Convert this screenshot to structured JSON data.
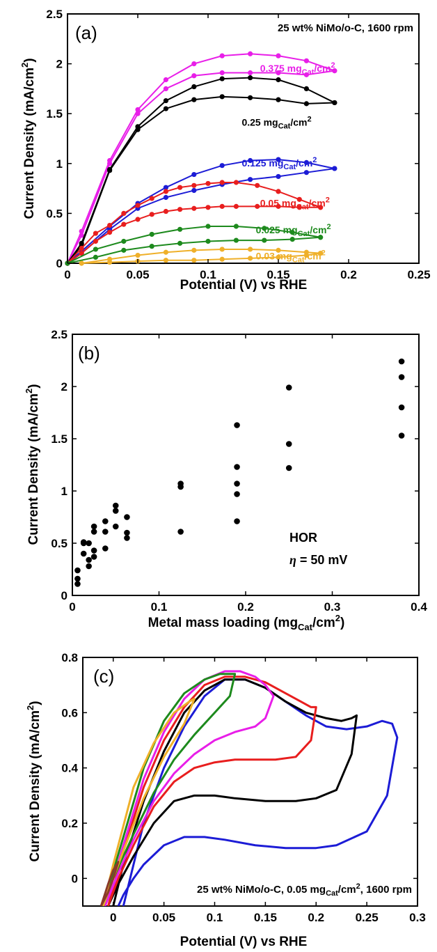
{
  "colors": {
    "magenta": "#e81ee8",
    "black": "#000000",
    "blue": "#1c1cd6",
    "red": "#e81e1e",
    "green": "#1d8a1d",
    "orange": "#efb02a"
  },
  "chart_data": [
    {
      "type": "line",
      "panel": "(a)",
      "annotation": "25 wt% NiMo/o-C, 1600 rpm",
      "xlabel": "Potential (V) vs RHE",
      "ylabel": "Current Density (mA/cm2)",
      "xlim": [
        0,
        0.25
      ],
      "ylim": [
        0,
        2.5
      ],
      "xticks": [
        "0",
        "0.05",
        "0.1",
        "0.15",
        "0.2",
        "0.25"
      ],
      "yticks": [
        "0",
        "0.5",
        "1",
        "1.5",
        "2",
        "2.5"
      ],
      "x": [
        0,
        0.01,
        0.03,
        0.05,
        0.07,
        0.09,
        0.11,
        0.13,
        0.15,
        0.17,
        0.19
      ],
      "series": [
        {
          "name": "0.375 mgCat/cm2",
          "label_main": "0.375 mg",
          "label_sub": "Cat",
          "label_tail": "/cm",
          "label_sup": "2",
          "color": "magenta",
          "forward": [
            0,
            0.32,
            1.03,
            1.54,
            1.84,
            2.0,
            2.08,
            2.1,
            2.08,
            2.03,
            1.93
          ],
          "backward": [
            0,
            0.28,
            1.0,
            1.5,
            1.75,
            1.88,
            1.91,
            1.91,
            1.91,
            1.89,
            1.93
          ]
        },
        {
          "name": "0.25 mgCat/cm2",
          "label_main": "0.25 mg",
          "label_sub": "Cat",
          "label_tail": "/cm",
          "label_sup": "2",
          "color": "black",
          "forward": [
            0,
            0.2,
            0.94,
            1.37,
            1.63,
            1.77,
            1.85,
            1.86,
            1.84,
            1.75,
            1.61
          ],
          "backward": [
            0,
            0.18,
            0.93,
            1.34,
            1.55,
            1.64,
            1.67,
            1.66,
            1.64,
            1.6,
            1.61
          ]
        },
        {
          "name": "0.125 mgCat/cm2",
          "label_main": "0.125 mg",
          "label_sub": "Cat",
          "label_tail": "/cm",
          "label_sup": "2",
          "color": "blue",
          "forward": [
            0,
            0.12,
            0.37,
            0.6,
            0.76,
            0.89,
            0.98,
            1.03,
            1.04,
            1.01,
            0.95
          ],
          "backward": [
            0,
            0.1,
            0.34,
            0.55,
            0.66,
            0.73,
            0.79,
            0.84,
            0.87,
            0.91,
            0.95
          ]
        },
        {
          "name": "0.05 mgCat/cm2",
          "label_main": "0.05 mg",
          "label_sub": "Cat",
          "label_tail": "/cm",
          "label_sup": "2",
          "color": "red",
          "x": [
            0,
            0.01,
            0.02,
            0.03,
            0.04,
            0.05,
            0.06,
            0.07,
            0.08,
            0.09,
            0.1,
            0.11,
            0.12,
            0.135,
            0.15,
            0.165,
            0.18
          ],
          "forward": [
            0,
            0.15,
            0.3,
            0.38,
            0.5,
            0.58,
            0.65,
            0.72,
            0.76,
            0.78,
            0.8,
            0.81,
            0.81,
            0.78,
            0.72,
            0.64,
            0.56
          ],
          "backward": [
            0,
            0.1,
            0.22,
            0.31,
            0.39,
            0.44,
            0.49,
            0.52,
            0.54,
            0.55,
            0.56,
            0.57,
            0.57,
            0.57,
            0.57,
            0.56,
            0.56
          ]
        },
        {
          "name": "0.025 mgCat/cm2",
          "label_main": "0.025 mg",
          "label_sub": "Cat",
          "label_tail": "/cm",
          "label_sup": "2",
          "color": "green",
          "x": [
            0,
            0.02,
            0.04,
            0.06,
            0.08,
            0.1,
            0.12,
            0.14,
            0.16,
            0.18
          ],
          "forward": [
            0,
            0.14,
            0.22,
            0.29,
            0.34,
            0.37,
            0.37,
            0.35,
            0.31,
            0.26
          ],
          "backward": [
            0,
            0.06,
            0.13,
            0.17,
            0.2,
            0.22,
            0.23,
            0.23,
            0.24,
            0.26
          ]
        },
        {
          "name": "0.03 mgCat/cm2",
          "label_main": "0.03 mg",
          "label_sub": "Cat",
          "label_tail": "/cm",
          "label_sup": "2",
          "color": "orange",
          "x": [
            0.01,
            0.03,
            0.05,
            0.07,
            0.09,
            0.11,
            0.13,
            0.15,
            0.17,
            0.18
          ],
          "forward": [
            0,
            0.04,
            0.08,
            0.11,
            0.13,
            0.14,
            0.14,
            0.13,
            0.11,
            0.1
          ],
          "backward": [
            0,
            0.01,
            0.02,
            0.03,
            0.03,
            0.04,
            0.05,
            0.06,
            0.08,
            0.1
          ]
        }
      ]
    },
    {
      "type": "scatter",
      "panel": "(b)",
      "annotation_line1": "HOR",
      "annotation_eta": "η",
      "annotation_line2_rest": " = 50 mV",
      "xlabel_main": "Metal mass loading (mg",
      "xlabel_sub": "Cat",
      "xlabel_tail": "/cm",
      "xlabel_sup": "2",
      "xlabel_close": ")",
      "ylabel": "Current Density (mA/cm2)",
      "xlim": [
        0,
        0.4
      ],
      "ylim": [
        0,
        2.5
      ],
      "xticks": [
        "0",
        "0.1",
        "0.2",
        "0.3",
        "0.4"
      ],
      "yticks": [
        "0",
        "0.5",
        "1",
        "1.5",
        "2",
        "2.5"
      ],
      "color": "black",
      "points": [
        [
          0.006,
          0.11
        ],
        [
          0.006,
          0.16
        ],
        [
          0.006,
          0.24
        ],
        [
          0.013,
          0.4
        ],
        [
          0.013,
          0.5
        ],
        [
          0.013,
          0.51
        ],
        [
          0.019,
          0.28
        ],
        [
          0.019,
          0.34
        ],
        [
          0.019,
          0.5
        ],
        [
          0.025,
          0.37
        ],
        [
          0.025,
          0.43
        ],
        [
          0.025,
          0.61
        ],
        [
          0.025,
          0.66
        ],
        [
          0.038,
          0.45
        ],
        [
          0.038,
          0.61
        ],
        [
          0.038,
          0.71
        ],
        [
          0.05,
          0.66
        ],
        [
          0.05,
          0.81
        ],
        [
          0.05,
          0.86
        ],
        [
          0.063,
          0.55
        ],
        [
          0.063,
          0.6
        ],
        [
          0.063,
          0.75
        ],
        [
          0.125,
          0.61
        ],
        [
          0.125,
          1.04
        ],
        [
          0.125,
          1.07
        ],
        [
          0.19,
          0.71
        ],
        [
          0.19,
          0.97
        ],
        [
          0.19,
          1.07
        ],
        [
          0.19,
          1.23
        ],
        [
          0.19,
          1.63
        ],
        [
          0.25,
          1.22
        ],
        [
          0.25,
          1.45
        ],
        [
          0.25,
          1.99
        ],
        [
          0.38,
          1.53
        ],
        [
          0.38,
          1.8
        ],
        [
          0.38,
          2.09
        ],
        [
          0.38,
          2.24
        ]
      ]
    },
    {
      "type": "line",
      "panel": "(c)",
      "annotation_main": "25 wt% NiMo/o-C, 0.05 mg",
      "annotation_sub": "Cat",
      "annotation_tail": "/cm",
      "annotation_sup": "2",
      "annotation_end": ", 1600 rpm",
      "xlabel": "Potential (V) vs RHE",
      "ylabel": "Current Density (mA/cm2)",
      "xlim": [
        -0.03,
        0.3
      ],
      "ylim": [
        -0.1,
        0.8
      ],
      "xticks": [
        "0",
        "0.05",
        "0.1",
        "0.15",
        "0.2",
        "0.25",
        "0.3"
      ],
      "yticks": [
        "0",
        "0.2",
        "0.4",
        "0.6",
        "0.8"
      ],
      "series": [
        {
          "color": "blue",
          "forward_x": [
            0.01,
            0.02,
            0.03,
            0.05,
            0.07,
            0.09,
            0.11,
            0.13,
            0.15,
            0.17,
            0.19,
            0.21,
            0.23,
            0.25,
            0.265,
            0.275,
            0.28
          ],
          "forward_y": [
            -0.1,
            0.05,
            0.2,
            0.4,
            0.55,
            0.66,
            0.72,
            0.72,
            0.69,
            0.64,
            0.59,
            0.55,
            0.54,
            0.55,
            0.57,
            0.56,
            0.51
          ],
          "backward_x": [
            0.28,
            0.27,
            0.25,
            0.22,
            0.2,
            0.17,
            0.14,
            0.11,
            0.09,
            0.07,
            0.05,
            0.03,
            0.02,
            0.01,
            0.005
          ],
          "backward_y": [
            0.51,
            0.3,
            0.17,
            0.12,
            0.11,
            0.11,
            0.12,
            0.14,
            0.15,
            0.15,
            0.12,
            0.05,
            0.0,
            -0.06,
            -0.1
          ]
        },
        {
          "color": "black",
          "forward_x": [
            0.0,
            0.01,
            0.03,
            0.05,
            0.07,
            0.09,
            0.11,
            0.13,
            0.15,
            0.17,
            0.19,
            0.21,
            0.225,
            0.235,
            0.24
          ],
          "forward_y": [
            -0.1,
            0.05,
            0.28,
            0.46,
            0.6,
            0.68,
            0.72,
            0.72,
            0.69,
            0.64,
            0.6,
            0.58,
            0.57,
            0.58,
            0.59
          ],
          "backward_x": [
            0.24,
            0.235,
            0.22,
            0.2,
            0.18,
            0.15,
            0.12,
            0.1,
            0.08,
            0.06,
            0.04,
            0.02,
            0.005,
            -0.005
          ],
          "backward_y": [
            0.59,
            0.45,
            0.32,
            0.29,
            0.28,
            0.28,
            0.29,
            0.3,
            0.3,
            0.28,
            0.2,
            0.08,
            -0.02,
            -0.1
          ]
        },
        {
          "color": "red",
          "forward_x": [
            -0.005,
            0.01,
            0.03,
            0.05,
            0.07,
            0.09,
            0.11,
            0.13,
            0.15,
            0.17,
            0.185,
            0.195,
            0.2
          ],
          "forward_y": [
            -0.1,
            0.1,
            0.33,
            0.5,
            0.62,
            0.7,
            0.73,
            0.73,
            0.71,
            0.67,
            0.64,
            0.62,
            0.62
          ],
          "backward_x": [
            0.2,
            0.195,
            0.18,
            0.16,
            0.14,
            0.12,
            0.1,
            0.08,
            0.06,
            0.04,
            0.02,
            0.005,
            -0.005
          ],
          "backward_y": [
            0.62,
            0.5,
            0.44,
            0.43,
            0.43,
            0.43,
            0.42,
            0.4,
            0.35,
            0.26,
            0.12,
            0.0,
            -0.1
          ]
        },
        {
          "color": "magenta",
          "forward_x": [
            -0.008,
            0.01,
            0.03,
            0.05,
            0.07,
            0.09,
            0.11,
            0.125,
            0.14,
            0.15,
            0.158
          ],
          "forward_y": [
            -0.1,
            0.12,
            0.36,
            0.53,
            0.65,
            0.72,
            0.75,
            0.75,
            0.73,
            0.7,
            0.66
          ],
          "backward_x": [
            0.158,
            0.15,
            0.14,
            0.12,
            0.1,
            0.08,
            0.06,
            0.04,
            0.02,
            0.005,
            -0.008
          ],
          "backward_y": [
            0.66,
            0.58,
            0.55,
            0.53,
            0.5,
            0.45,
            0.38,
            0.28,
            0.14,
            0.02,
            -0.1
          ]
        },
        {
          "color": "green",
          "forward_x": [
            -0.01,
            0.01,
            0.03,
            0.05,
            0.07,
            0.09,
            0.105,
            0.115,
            0.12
          ],
          "forward_y": [
            -0.1,
            0.15,
            0.4,
            0.57,
            0.67,
            0.72,
            0.74,
            0.74,
            0.74
          ],
          "backward_x": [
            0.12,
            0.115,
            0.1,
            0.08,
            0.06,
            0.04,
            0.02,
            0.0,
            -0.01
          ],
          "backward_y": [
            0.74,
            0.66,
            0.6,
            0.52,
            0.43,
            0.31,
            0.16,
            0.0,
            -0.1
          ]
        },
        {
          "color": "orange",
          "forward_x": [
            -0.01,
            0.0,
            0.02,
            0.04,
            0.06,
            0.075,
            0.08
          ],
          "forward_y": [
            -0.1,
            0.05,
            0.33,
            0.49,
            0.6,
            0.64,
            0.65
          ],
          "backward_x": [
            0.08,
            0.07,
            0.05,
            0.03,
            0.01,
            -0.005,
            -0.01
          ],
          "backward_y": [
            0.65,
            0.56,
            0.44,
            0.29,
            0.1,
            -0.05,
            -0.1
          ]
        },
        {
          "color": "olive",
          "forward_x": [
            -0.012,
            -0.005,
            0.0,
            0.005
          ],
          "forward_y": [
            -0.1,
            -0.02,
            0.03,
            0.06
          ],
          "backward_x": [
            0.005,
            0.0,
            -0.005,
            -0.012
          ],
          "backward_y": [
            0.06,
            0.0,
            -0.05,
            -0.1
          ]
        }
      ]
    }
  ]
}
